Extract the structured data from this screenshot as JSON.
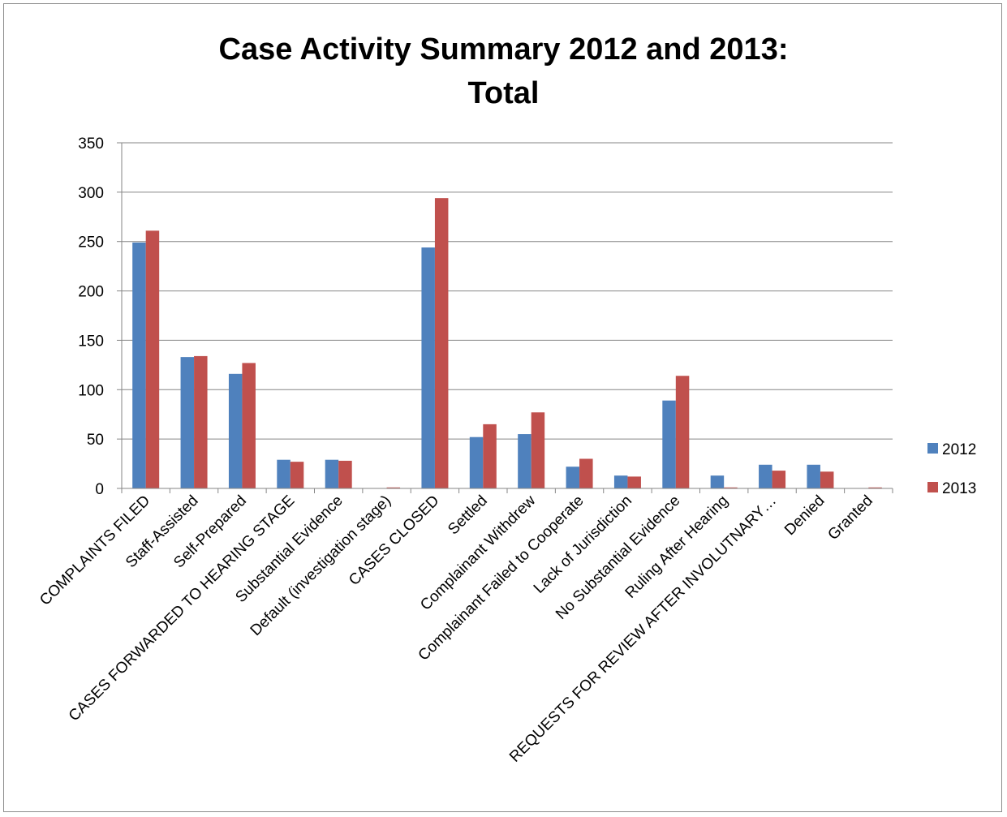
{
  "chart_data": {
    "type": "bar",
    "title_line1": "Case Activity Summary 2012 and 2013:",
    "title_line2": "Total",
    "categories": [
      "COMPLAINTS FILED",
      "Staff-Assisted",
      "Self-Prepared",
      "CASES FORWARDED TO HEARING STAGE",
      "Substantial Evidence",
      "Default (investigation stage)",
      "CASES CLOSED",
      "Settled",
      "Complainant Withdrew",
      "Complainant Failed to Cooperate",
      "Lack of Jurisdiction",
      "No Substantial Evidence",
      "Ruling After Hearing",
      "REQUESTS FOR REVIEW AFTER INVOLUTNARY…",
      "Denied",
      "Granted"
    ],
    "series": [
      {
        "name": "2012",
        "color": "#4f81bd",
        "values": [
          249,
          133,
          116,
          29,
          29,
          0,
          244,
          52,
          55,
          22,
          13,
          89,
          13,
          24,
          24,
          0
        ]
      },
      {
        "name": "2013",
        "color": "#c0504d",
        "values": [
          261,
          134,
          127,
          27,
          28,
          1,
          294,
          65,
          77,
          30,
          12,
          114,
          1,
          18,
          17,
          1
        ]
      }
    ],
    "ylim": [
      0,
      350
    ],
    "yticks": [
      0,
      50,
      100,
      150,
      200,
      250,
      300,
      350
    ],
    "grid": true,
    "legend_position": "right"
  }
}
